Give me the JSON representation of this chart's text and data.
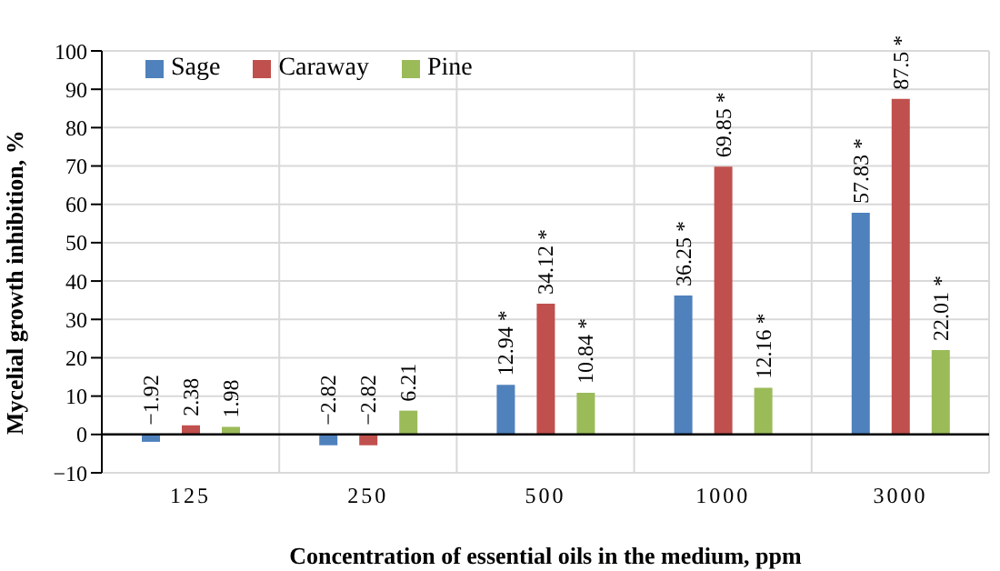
{
  "chart_data": {
    "type": "bar",
    "xlabel": "Concentration of essential oils in the medium, ppm",
    "ylabel": "Mycelial growth inhibition, %",
    "categories": [
      "125",
      "250",
      "500",
      "1000",
      "3000"
    ],
    "series": [
      {
        "name": "Sage",
        "color": "#4f81bd",
        "values": [
          -1.92,
          -2.82,
          12.94,
          36.25,
          57.83
        ],
        "value_labels": [
          "−1.92",
          "−2.82",
          "12.94 *",
          "36.25 *",
          "57.83 *"
        ]
      },
      {
        "name": "Caraway",
        "color": "#c0504d",
        "values": [
          2.38,
          -2.82,
          34.12,
          69.85,
          87.5
        ],
        "value_labels": [
          "2.38",
          "−2.82",
          "34.12 *",
          "69.85 *",
          "87.5 *"
        ]
      },
      {
        "name": "Pine",
        "color": "#9bbb59",
        "values": [
          1.98,
          6.21,
          10.84,
          12.16,
          22.01
        ],
        "value_labels": [
          "1.98",
          "6.21",
          "10.84 *",
          "12.16 *",
          "22.01 *"
        ]
      }
    ],
    "ylim": [
      -10,
      100
    ],
    "yticks": [
      -10,
      0,
      10,
      20,
      30,
      40,
      50,
      60,
      70,
      80,
      90,
      100
    ],
    "grid": true,
    "legend": "top left"
  }
}
